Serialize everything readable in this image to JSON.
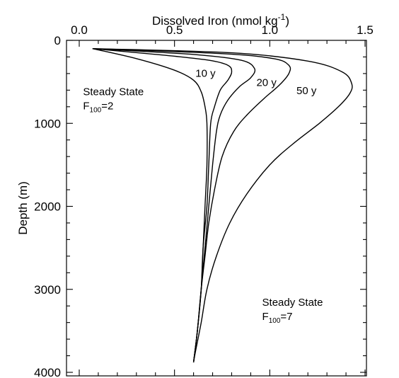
{
  "chart_data": {
    "type": "line",
    "xlabel": "Dissolved Iron (nmol kg",
    "xlabel_sup": "-1",
    "xlabel_close": ")",
    "ylabel": "Depth (m)",
    "xlim": [
      0,
      1.5
    ],
    "ylim": [
      0,
      4000
    ],
    "x_axis_position": "top",
    "y_inverted": true,
    "grid": false,
    "x_ticks": [
      {
        "value": 0,
        "label": "0.0"
      },
      {
        "value": 0.5,
        "label": "0.5"
      },
      {
        "value": 1.0,
        "label": "1.0"
      },
      {
        "value": 1.5,
        "label": "1.5"
      }
    ],
    "x_minor_step": 0.1,
    "y_ticks": [
      {
        "value": 0,
        "label": "0"
      },
      {
        "value": 1000,
        "label": "1000"
      },
      {
        "value": 2000,
        "label": "2000"
      },
      {
        "value": 3000,
        "label": "3000"
      },
      {
        "value": 4000,
        "label": "4000"
      }
    ],
    "y_minor_step": 200,
    "series": [
      {
        "name": "Steady State F100=2",
        "points": [
          [
            0.07,
            100
          ],
          [
            0.3,
            220
          ],
          [
            0.5,
            360
          ],
          [
            0.6,
            480
          ],
          [
            0.64,
            620
          ],
          [
            0.66,
            800
          ],
          [
            0.67,
            1000
          ],
          [
            0.67,
            1500
          ],
          [
            0.66,
            2000
          ],
          [
            0.65,
            2500
          ],
          [
            0.64,
            3000
          ],
          [
            0.62,
            3500
          ],
          [
            0.6,
            3880
          ]
        ]
      },
      {
        "name": "10 y",
        "points": [
          [
            0.07,
            100
          ],
          [
            0.45,
            180
          ],
          [
            0.68,
            240
          ],
          [
            0.78,
            300
          ],
          [
            0.8,
            380
          ],
          [
            0.78,
            480
          ],
          [
            0.74,
            600
          ],
          [
            0.71,
            800
          ],
          [
            0.69,
            1000
          ],
          [
            0.68,
            1500
          ],
          [
            0.67,
            2000
          ],
          [
            0.65,
            2500
          ],
          [
            0.64,
            3000
          ],
          [
            0.62,
            3500
          ],
          [
            0.6,
            3880
          ]
        ]
      },
      {
        "name": "20 y",
        "points": [
          [
            0.07,
            100
          ],
          [
            0.6,
            170
          ],
          [
            0.85,
            240
          ],
          [
            0.92,
            340
          ],
          [
            0.9,
            450
          ],
          [
            0.84,
            560
          ],
          [
            0.78,
            720
          ],
          [
            0.74,
            900
          ],
          [
            0.72,
            1100
          ],
          [
            0.7,
            1500
          ],
          [
            0.68,
            2000
          ],
          [
            0.66,
            2500
          ],
          [
            0.64,
            3000
          ],
          [
            0.62,
            3500
          ],
          [
            0.6,
            3880
          ]
        ]
      },
      {
        "name": "50 y",
        "points": [
          [
            0.07,
            100
          ],
          [
            0.75,
            160
          ],
          [
            1.02,
            220
          ],
          [
            1.1,
            300
          ],
          [
            1.1,
            400
          ],
          [
            1.05,
            540
          ],
          [
            0.97,
            700
          ],
          [
            0.88,
            900
          ],
          [
            0.81,
            1100
          ],
          [
            0.75,
            1400
          ],
          [
            0.71,
            1800
          ],
          [
            0.68,
            2200
          ],
          [
            0.66,
            2600
          ],
          [
            0.64,
            3000
          ],
          [
            0.62,
            3500
          ],
          [
            0.6,
            3880
          ]
        ]
      },
      {
        "name": "Steady State F100=7",
        "points": [
          [
            0.07,
            100
          ],
          [
            0.8,
            150
          ],
          [
            1.2,
            250
          ],
          [
            1.38,
            380
          ],
          [
            1.43,
            520
          ],
          [
            1.42,
            640
          ],
          [
            1.36,
            800
          ],
          [
            1.26,
            1000
          ],
          [
            1.12,
            1250
          ],
          [
            1.0,
            1500
          ],
          [
            0.88,
            1850
          ],
          [
            0.79,
            2200
          ],
          [
            0.72,
            2600
          ],
          [
            0.67,
            3000
          ],
          [
            0.64,
            3400
          ],
          [
            0.61,
            3750
          ],
          [
            0.6,
            3880
          ]
        ]
      }
    ],
    "annotations": [
      {
        "id": "ss2-line1",
        "text": "Steady State",
        "x": 0.02,
        "y": 660
      },
      {
        "id": "ss2-line2",
        "text": "F",
        "sub": "100",
        "tail": "=2",
        "x": 0.02,
        "y": 830
      },
      {
        "id": "lbl10",
        "text": "10 y",
        "x": 0.61,
        "y": 440
      },
      {
        "id": "lbl20",
        "text": "20 y",
        "x": 0.93,
        "y": 550
      },
      {
        "id": "lbl50",
        "text": "50 y",
        "x": 1.14,
        "y": 650
      },
      {
        "id": "ss7-line1",
        "text": "Steady State",
        "x": 0.96,
        "y": 3200
      },
      {
        "id": "ss7-line2",
        "text": "F",
        "sub": "100",
        "tail": "=7",
        "x": 0.96,
        "y": 3370
      }
    ]
  }
}
